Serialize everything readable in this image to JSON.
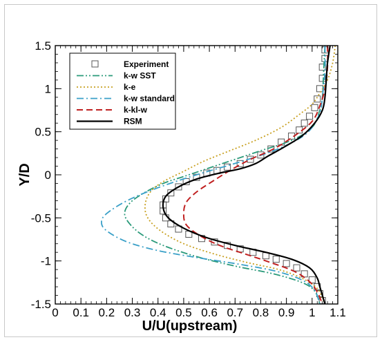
{
  "chart_data": {
    "type": "line",
    "xlabel": "U/U(upstream)",
    "ylabel": "Y/D",
    "xlim": [
      0,
      1.1
    ],
    "ylim": [
      -1.5,
      1.5
    ],
    "x_ticks": [
      "0",
      "0.1",
      "0.2",
      "0.3",
      "0.4",
      "0.5",
      "0.6",
      "0.7",
      "0.8",
      "0.9",
      "1",
      "1.1"
    ],
    "y_ticks": [
      "-1.5",
      "-1",
      "-0.5",
      "0",
      "0.5",
      "1",
      "1.5"
    ],
    "grid": false,
    "legend_position": "top-left",
    "series": [
      {
        "name": "Experiment",
        "style": "markers",
        "marker": "open-square",
        "color": "#555555",
        "points": [
          [
            1.05,
            1.45
          ],
          [
            1.05,
            1.35
          ],
          [
            1.04,
            1.25
          ],
          [
            1.04,
            1.12
          ],
          [
            1.03,
            1.0
          ],
          [
            1.02,
            0.88
          ],
          [
            1.01,
            0.78
          ],
          [
            0.99,
            0.68
          ],
          [
            0.97,
            0.6
          ],
          [
            0.95,
            0.52
          ],
          [
            0.92,
            0.45
          ],
          [
            0.88,
            0.38
          ],
          [
            0.84,
            0.3
          ],
          [
            0.8,
            0.23
          ],
          [
            0.76,
            0.18
          ],
          [
            0.72,
            0.13
          ],
          [
            0.67,
            0.09
          ],
          [
            0.63,
            0.05
          ],
          [
            0.59,
            0.02
          ],
          [
            0.55,
            -0.03
          ],
          [
            0.51,
            -0.08
          ],
          [
            0.48,
            -0.14
          ],
          [
            0.45,
            -0.21
          ],
          [
            0.43,
            -0.28
          ],
          [
            0.42,
            -0.35
          ],
          [
            0.42,
            -0.42
          ],
          [
            0.43,
            -0.5
          ],
          [
            0.45,
            -0.57
          ],
          [
            0.48,
            -0.63
          ],
          [
            0.52,
            -0.69
          ],
          [
            0.57,
            -0.74
          ],
          [
            0.62,
            -0.78
          ],
          [
            0.67,
            -0.82
          ],
          [
            0.72,
            -0.86
          ],
          [
            0.77,
            -0.9
          ],
          [
            0.82,
            -0.94
          ],
          [
            0.86,
            -0.98
          ],
          [
            0.9,
            -1.03
          ],
          [
            0.94,
            -1.08
          ],
          [
            0.97,
            -1.15
          ],
          [
            1.0,
            -1.22
          ],
          [
            1.02,
            -1.3
          ],
          [
            1.03,
            -1.38
          ],
          [
            1.04,
            -1.46
          ]
        ]
      },
      {
        "name": "k-w SST",
        "style": "dash-dot-dot",
        "color": "#2a9a7a",
        "points": [
          [
            1.05,
            1.5
          ],
          [
            1.045,
            1.2
          ],
          [
            1.04,
            0.9
          ],
          [
            1.03,
            0.75
          ],
          [
            1.0,
            0.55
          ],
          [
            0.92,
            0.4
          ],
          [
            0.8,
            0.28
          ],
          [
            0.7,
            0.18
          ],
          [
            0.6,
            0.08
          ],
          [
            0.5,
            -0.02
          ],
          [
            0.42,
            -0.1
          ],
          [
            0.34,
            -0.22
          ],
          [
            0.29,
            -0.33
          ],
          [
            0.27,
            -0.45
          ],
          [
            0.29,
            -0.57
          ],
          [
            0.34,
            -0.7
          ],
          [
            0.42,
            -0.82
          ],
          [
            0.55,
            -0.95
          ],
          [
            0.7,
            -1.06
          ],
          [
            0.85,
            -1.15
          ],
          [
            0.96,
            -1.25
          ],
          [
            1.01,
            -1.35
          ],
          [
            1.03,
            -1.5
          ]
        ]
      },
      {
        "name": "k-e",
        "style": "dotted",
        "color": "#c8a020",
        "points": [
          [
            1.09,
            1.5
          ],
          [
            1.08,
            1.3
          ],
          [
            1.06,
            1.1
          ],
          [
            1.03,
            0.95
          ],
          [
            1.0,
            0.82
          ],
          [
            0.95,
            0.7
          ],
          [
            0.88,
            0.55
          ],
          [
            0.78,
            0.4
          ],
          [
            0.68,
            0.28
          ],
          [
            0.58,
            0.16
          ],
          [
            0.5,
            0.04
          ],
          [
            0.42,
            -0.08
          ],
          [
            0.37,
            -0.2
          ],
          [
            0.35,
            -0.35
          ],
          [
            0.36,
            -0.5
          ],
          [
            0.41,
            -0.65
          ],
          [
            0.5,
            -0.8
          ],
          [
            0.62,
            -0.92
          ],
          [
            0.75,
            -1.02
          ],
          [
            0.87,
            -1.1
          ],
          [
            0.96,
            -1.2
          ],
          [
            1.02,
            -1.32
          ],
          [
            1.05,
            -1.5
          ]
        ]
      },
      {
        "name": "k-w standard",
        "style": "dash-dot",
        "color": "#3aa0c8",
        "points": [
          [
            1.05,
            1.5
          ],
          [
            1.05,
            1.2
          ],
          [
            1.04,
            0.9
          ],
          [
            1.03,
            0.72
          ],
          [
            1.0,
            0.55
          ],
          [
            0.95,
            0.42
          ],
          [
            0.85,
            0.28
          ],
          [
            0.72,
            0.15
          ],
          [
            0.55,
            0.0
          ],
          [
            0.4,
            -0.15
          ],
          [
            0.28,
            -0.3
          ],
          [
            0.2,
            -0.45
          ],
          [
            0.18,
            -0.55
          ],
          [
            0.2,
            -0.65
          ],
          [
            0.28,
            -0.78
          ],
          [
            0.4,
            -0.88
          ],
          [
            0.55,
            -0.96
          ],
          [
            0.72,
            -1.04
          ],
          [
            0.86,
            -1.12
          ],
          [
            0.96,
            -1.22
          ],
          [
            1.01,
            -1.34
          ],
          [
            1.03,
            -1.5
          ]
        ]
      },
      {
        "name": "k-kl-w",
        "style": "dashed",
        "color": "#c02020",
        "points": [
          [
            1.06,
            1.5
          ],
          [
            1.06,
            1.25
          ],
          [
            1.05,
            1.0
          ],
          [
            1.03,
            0.8
          ],
          [
            1.0,
            0.62
          ],
          [
            0.93,
            0.45
          ],
          [
            0.85,
            0.3
          ],
          [
            0.76,
            0.18
          ],
          [
            0.68,
            0.05
          ],
          [
            0.61,
            -0.08
          ],
          [
            0.55,
            -0.2
          ],
          [
            0.51,
            -0.32
          ],
          [
            0.5,
            -0.45
          ],
          [
            0.51,
            -0.58
          ],
          [
            0.56,
            -0.7
          ],
          [
            0.64,
            -0.82
          ],
          [
            0.74,
            -0.92
          ],
          [
            0.84,
            -1.02
          ],
          [
            0.93,
            -1.12
          ],
          [
            0.99,
            -1.24
          ],
          [
            1.02,
            -1.36
          ],
          [
            1.04,
            -1.5
          ]
        ]
      },
      {
        "name": "RSM",
        "style": "solid",
        "color": "#000000",
        "points": [
          [
            1.07,
            1.5
          ],
          [
            1.06,
            1.3
          ],
          [
            1.055,
            1.1
          ],
          [
            1.05,
            0.9
          ],
          [
            1.04,
            0.75
          ],
          [
            1.01,
            0.6
          ],
          [
            0.96,
            0.45
          ],
          [
            0.89,
            0.32
          ],
          [
            0.83,
            0.22
          ],
          [
            0.78,
            0.13
          ],
          [
            0.72,
            0.07
          ],
          [
            0.64,
            0.02
          ],
          [
            0.55,
            -0.05
          ],
          [
            0.48,
            -0.14
          ],
          [
            0.43,
            -0.25
          ],
          [
            0.42,
            -0.38
          ],
          [
            0.44,
            -0.5
          ],
          [
            0.5,
            -0.62
          ],
          [
            0.59,
            -0.73
          ],
          [
            0.7,
            -0.82
          ],
          [
            0.82,
            -0.9
          ],
          [
            0.92,
            -0.98
          ],
          [
            0.99,
            -1.08
          ],
          [
            1.02,
            -1.2
          ],
          [
            1.03,
            -1.3
          ],
          [
            1.04,
            -1.4
          ],
          [
            1.05,
            -1.5
          ]
        ]
      }
    ]
  }
}
